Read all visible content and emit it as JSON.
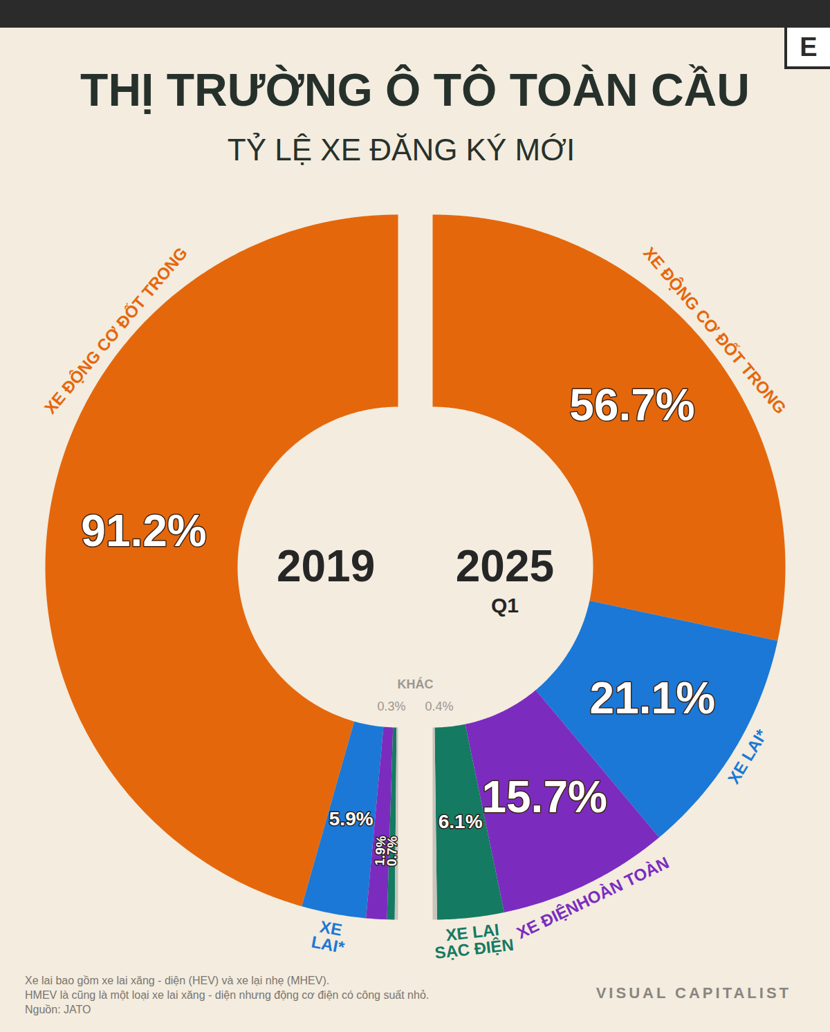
{
  "chart_data": {
    "type": "pie",
    "title": "THỊ TRƯỜNG Ô TÔ TOÀN CẦU",
    "subtitle": "TỶ LỆ XE ĐĂNG KÝ MỚI",
    "categories": [
      "XE ĐỘNG CƠ ĐỐT TRONG",
      "XE LAI*",
      "XE ĐIỆNHOÀN TOÀN",
      "XE LAI SẠC ĐIỆN",
      "KHÁC"
    ],
    "colors": [
      "#e5670c",
      "#1b78d6",
      "#7b2cbf",
      "#157a62",
      "#c9c4bc"
    ],
    "data_labels": true,
    "series": [
      {
        "name": "2019",
        "values": [
          91.2,
          5.9,
          1.9,
          0.7,
          0.3
        ],
        "value_labels": [
          "91.2%",
          "5.9%",
          "1.9%",
          "0.7%",
          "0.3%"
        ],
        "labels": [
          "XE ĐỘNG CƠ ĐỐT TRONG",
          "XE LAI*",
          null,
          null,
          null
        ]
      },
      {
        "name": "2025",
        "period": "Q1",
        "values": [
          56.7,
          21.1,
          15.7,
          6.1,
          0.4
        ],
        "value_labels": [
          "56.7%",
          "21.1%",
          "15.7%",
          "6.1%",
          "0.4%"
        ],
        "labels": [
          "XE ĐỘNG CƠ ĐỐT TRONG",
          "XE LAI*",
          "XE ĐIỆNHOÀN TOÀN",
          "XE LAI SẠC ĐIỆN",
          null
        ]
      }
    ],
    "notes": [
      "Xe lai bao gồm xe lai xăng - diện (HEV) và xe lại nhẹ (MHEV).",
      "HMEV là cũng là một loại xe lai xăng - diện nhưng động cơ điện có công suất nhỏ."
    ],
    "source": "Nguồn: JATO",
    "credit": "VISUAL CAPITALIST",
    "logo": "E"
  }
}
